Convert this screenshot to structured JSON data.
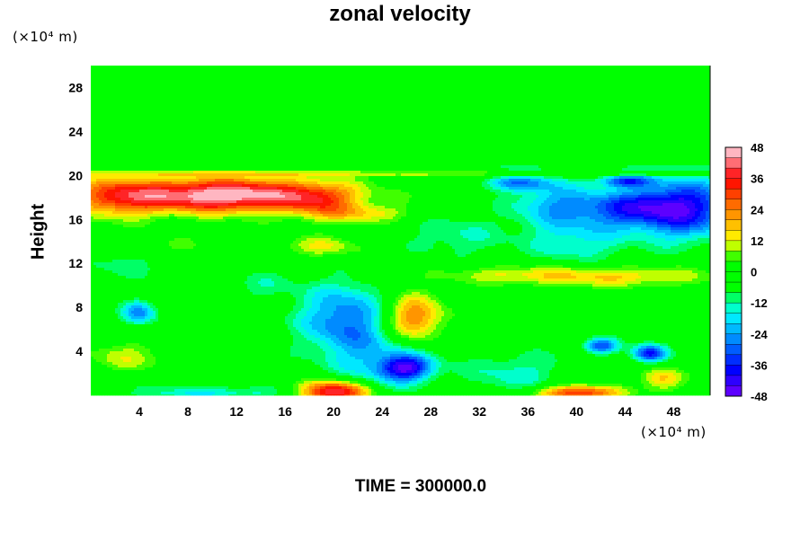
{
  "chart_data": {
    "type": "heatmap",
    "title": "zonal velocity",
    "ylabel": "Height",
    "xlabel": "",
    "x_unit": "(×10⁴ m)",
    "y_unit": "(×10⁴ m)",
    "xlim": [
      0,
      51
    ],
    "ylim": [
      0,
      30
    ],
    "x_ticks": [
      4,
      8,
      12,
      16,
      20,
      24,
      28,
      32,
      36,
      40,
      44,
      48
    ],
    "y_ticks": [
      4,
      8,
      12,
      16,
      20,
      24,
      28
    ],
    "colorbar": {
      "min": -48,
      "max": 48,
      "step": 4,
      "tick_labels": [
        48,
        36,
        24,
        12,
        0,
        -12,
        -24,
        -36,
        -48
      ]
    },
    "features": [
      {
        "x": 11,
        "y": 18.2,
        "sx": 6.5,
        "sy": 1.1,
        "v": 52
      },
      {
        "x": 2,
        "y": 18,
        "sx": 2.5,
        "sy": 1.4,
        "v": 20
      },
      {
        "x": 19,
        "y": 17.5,
        "sx": 2,
        "sy": 1.2,
        "v": 16
      },
      {
        "x": 23,
        "y": 16.5,
        "sx": 2.5,
        "sy": 0.6,
        "v": 14
      },
      {
        "x": 19,
        "y": 13.5,
        "sx": 2.5,
        "sy": 0.7,
        "v": 14
      },
      {
        "x": 6,
        "y": 13.5,
        "sx": 2,
        "sy": 0.8,
        "v": 8
      },
      {
        "x": 26.5,
        "y": 7,
        "sx": 1.8,
        "sy": 1.6,
        "v": 30
      },
      {
        "x": 20,
        "y": 0.3,
        "sx": 2,
        "sy": 0.7,
        "v": 48
      },
      {
        "x": 40,
        "y": 0.2,
        "sx": 2.5,
        "sy": 0.5,
        "v": 36
      },
      {
        "x": 47,
        "y": 1.5,
        "sx": 1.2,
        "sy": 0.8,
        "v": 20
      },
      {
        "x": 3,
        "y": 3.5,
        "sx": 2.5,
        "sy": 1,
        "v": 12
      },
      {
        "x": 43,
        "y": 10.8,
        "sx": 6,
        "sy": 0.7,
        "v": 18
      },
      {
        "x": 34,
        "y": 11,
        "sx": 4,
        "sy": 0.6,
        "v": 10
      },
      {
        "x": 49,
        "y": 17,
        "sx": 3,
        "sy": 2,
        "v": -36
      },
      {
        "x": 44,
        "y": 17,
        "sx": 3,
        "sy": 1.2,
        "v": -26
      },
      {
        "x": 38,
        "y": 17.5,
        "sx": 2.5,
        "sy": 1.5,
        "v": -18
      },
      {
        "x": 35,
        "y": 19.3,
        "sx": 2,
        "sy": 0.5,
        "v": -22
      },
      {
        "x": 44,
        "y": 19.5,
        "sx": 1.5,
        "sy": 0.4,
        "v": -28
      },
      {
        "x": 21,
        "y": 7,
        "sx": 2.8,
        "sy": 2.3,
        "v": -26
      },
      {
        "x": 24,
        "y": 3,
        "sx": 3,
        "sy": 2,
        "v": -14
      },
      {
        "x": 26,
        "y": 2.5,
        "sx": 1.5,
        "sy": 0.8,
        "v": -34
      },
      {
        "x": 46,
        "y": 3.8,
        "sx": 1,
        "sy": 0.6,
        "v": -36
      },
      {
        "x": 42,
        "y": 4.5,
        "sx": 1,
        "sy": 0.5,
        "v": -30
      },
      {
        "x": 4,
        "y": 7.5,
        "sx": 1,
        "sy": 0.8,
        "v": -24
      },
      {
        "x": 40,
        "y": 14,
        "sx": 3,
        "sy": 1.5,
        "v": -14
      },
      {
        "x": 35,
        "y": 2,
        "sx": 3,
        "sy": 1.5,
        "v": -12
      },
      {
        "x": 14,
        "y": 10,
        "sx": 2,
        "sy": 1,
        "v": -8
      },
      {
        "x": 3,
        "y": 12,
        "sx": 2,
        "sy": 1,
        "v": -10
      },
      {
        "x": 10,
        "y": 0.2,
        "sx": 5,
        "sy": 0.5,
        "v": -14
      },
      {
        "x": 30,
        "y": 14.5,
        "sx": 3,
        "sy": 1.5,
        "v": -10
      },
      {
        "x": 25.5,
        "y": 20.7,
        "sx": 25,
        "sy": 0.25,
        "v": -8
      },
      {
        "x": 25.5,
        "y": 20.2,
        "sx": 25,
        "sy": 0.2,
        "v": 12
      }
    ]
  },
  "footer": {
    "time_label": "TIME = 300000.0"
  },
  "colors": {
    "purple": "#8b00ff",
    "blue": "#0000ff",
    "cyan": "#00ffff",
    "green": "#00ff00",
    "yellow": "#ffff00",
    "orange": "#ff8000",
    "red": "#ff0000",
    "pink": "#ffb6c1"
  }
}
